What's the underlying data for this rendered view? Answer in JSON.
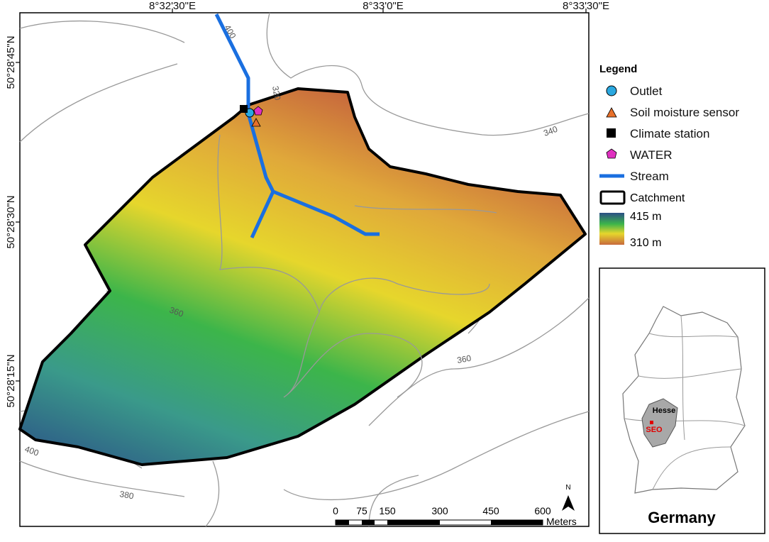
{
  "map": {
    "coordinates": {
      "top": [
        "8°32'30\"E",
        "8°33'0\"E",
        "8°33'30\"E"
      ],
      "left": [
        "50°28'45\"N",
        "50°28'30\"N",
        "50°28'15\"N"
      ]
    },
    "contour_labels": [
      "400",
      "320",
      "340",
      "360",
      "360",
      "400",
      "380"
    ],
    "legend": {
      "title": "Legend",
      "items": [
        "Outlet",
        "Soil moisture sensor",
        "Climate station",
        "WATER",
        "Stream",
        "Catchment"
      ],
      "elevation_high": "415 m",
      "elevation_low": "310 m"
    },
    "scale_bar": {
      "ticks": [
        "0",
        "75",
        "150",
        "300",
        "450",
        "600"
      ],
      "unit": "Meters",
      "north": "N"
    },
    "inset": {
      "region": "Hesse",
      "site": "SEO",
      "country": "Germany"
    }
  }
}
